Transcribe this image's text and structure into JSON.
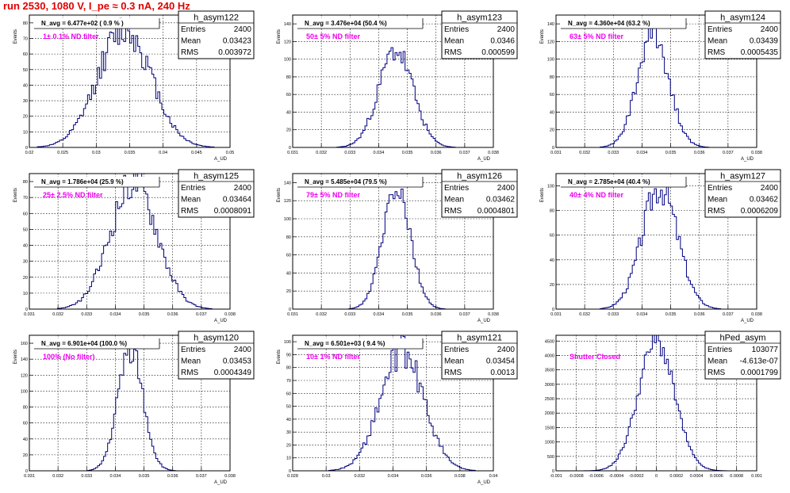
{
  "page_title": "run 2530,  1080 V, I_pe ≈ 0.3 nA, 240 Hz",
  "colors": {
    "title": "#e00000",
    "histogram": "#000080",
    "annotation": "#ee00ee"
  },
  "chart_data": [
    {
      "type": "histogram",
      "title": "h_asym122",
      "ylabel": "Events",
      "xlabel": "A_UD",
      "navg_label": "N_avg = 6.477e+02 ( 0.9 % )",
      "filter_label": "1± 0.1% ND filter",
      "stats": {
        "entries": "2400",
        "mean": "0.03423",
        "rms": "0.003972"
      },
      "x_ticks": [
        "0.02",
        "0.025",
        "0.03",
        "0.035",
        "0.04",
        "0.045",
        "0.05"
      ],
      "xlim": [
        0.02,
        0.05
      ],
      "y_ticks": [
        "0",
        "10",
        "20",
        "30",
        "40",
        "50",
        "60",
        "70",
        "80"
      ],
      "ylim": [
        0,
        85
      ],
      "gen": {
        "mean": 0.03423,
        "sigma": 0.003972,
        "peak": 76,
        "seed": 12
      }
    },
    {
      "type": "histogram",
      "title": "h_asym123",
      "ylabel": "Events",
      "xlabel": "A_UD",
      "navg_label": "N_avg = 3.476e+04 (50.4 %)",
      "filter_label": "50± 5% ND filter",
      "stats": {
        "entries": "2400",
        "mean": "0.0346",
        "rms": "0.000599"
      },
      "x_ticks": [
        "0.031",
        "0.032",
        "0.033",
        "0.034",
        "0.035",
        "0.036",
        "0.037",
        "0.038"
      ],
      "xlim": [
        0.031,
        0.038
      ],
      "y_ticks": [
        "0",
        "20",
        "40",
        "60",
        "80",
        "100",
        "120",
        "140"
      ],
      "ylim": [
        0,
        150
      ],
      "gen": {
        "mean": 0.0346,
        "sigma": 0.000599,
        "peak": 110,
        "seed": 23
      }
    },
    {
      "type": "histogram",
      "title": "h_asym124",
      "ylabel": "Events",
      "xlabel": "A_UD",
      "navg_label": "N_avg = 4.360e+04 (63.2 %)",
      "filter_label": "63± 5% ND filter",
      "stats": {
        "entries": "2400",
        "mean": "0.03439",
        "rms": "0.0005435"
      },
      "x_ticks": [
        "0.031",
        "0.032",
        "0.033",
        "0.034",
        "0.035",
        "0.036",
        "0.037",
        "0.038"
      ],
      "xlim": [
        0.031,
        0.038
      ],
      "y_ticks": [
        "0",
        "20",
        "40",
        "60",
        "80",
        "100",
        "120",
        "140"
      ],
      "ylim": [
        0,
        150
      ],
      "gen": {
        "mean": 0.03439,
        "sigma": 0.0005435,
        "peak": 130,
        "seed": 34
      }
    },
    {
      "type": "histogram",
      "title": "h_asym125",
      "ylabel": "Events",
      "xlabel": "A_UD",
      "navg_label": "N_avg = 1.786e+04 (25.9 %)",
      "filter_label": "25± 2.5% ND filter",
      "stats": {
        "entries": "2400",
        "mean": "0.03464",
        "rms": "0.0008091"
      },
      "x_ticks": [
        "0.031",
        "0.032",
        "0.033",
        "0.034",
        "0.035",
        "0.036",
        "0.037",
        "0.038"
      ],
      "xlim": [
        0.031,
        0.038
      ],
      "y_ticks": [
        "0",
        "10",
        "20",
        "30",
        "40",
        "50",
        "60",
        "70",
        "80"
      ],
      "ylim": [
        0,
        85
      ],
      "gen": {
        "mean": 0.03464,
        "sigma": 0.0008091,
        "peak": 80,
        "seed": 45
      }
    },
    {
      "type": "histogram",
      "title": "h_asym126",
      "ylabel": "Events",
      "xlabel": "A_UD",
      "navg_label": "N_avg = 5.485e+04 (79.5 %)",
      "filter_label": "79± 5% ND filter",
      "stats": {
        "entries": "2400",
        "mean": "0.03462",
        "rms": "0.0004801"
      },
      "x_ticks": [
        "0.031",
        "0.032",
        "0.033",
        "0.034",
        "0.035",
        "0.036",
        "0.037",
        "0.038"
      ],
      "xlim": [
        0.031,
        0.038
      ],
      "y_ticks": [
        "0",
        "20",
        "40",
        "60",
        "80",
        "100",
        "120",
        "140"
      ],
      "ylim": [
        0,
        150
      ],
      "gen": {
        "mean": 0.03462,
        "sigma": 0.0004801,
        "peak": 140,
        "seed": 56
      }
    },
    {
      "type": "histogram",
      "title": "h_asym127",
      "ylabel": "Events",
      "xlabel": "A_UD",
      "navg_label": "N_avg = 2.785e+04 (40.4 %)",
      "filter_label": "40± 4% ND filter",
      "stats": {
        "entries": "2400",
        "mean": "0.03462",
        "rms": "0.0006209"
      },
      "x_ticks": [
        "0.031",
        "0.032",
        "0.033",
        "0.034",
        "0.035",
        "0.036",
        "0.037",
        "0.038"
      ],
      "xlim": [
        0.031,
        0.038
      ],
      "y_ticks": [
        "0",
        "20",
        "40",
        "60",
        "80",
        "100"
      ],
      "ylim": [
        0,
        110
      ],
      "gen": {
        "mean": 0.03462,
        "sigma": 0.0006209,
        "peak": 100,
        "seed": 67
      }
    },
    {
      "type": "histogram",
      "title": "h_asym120",
      "ylabel": "Events",
      "xlabel": "A_UD",
      "navg_label": "N_avg = 6.901e+04 (100.0 %)",
      "filter_label": "100% (No filter)",
      "stats": {
        "entries": "2400",
        "mean": "0.03453",
        "rms": "0.0004349"
      },
      "x_ticks": [
        "0.031",
        "0.032",
        "0.033",
        "0.034",
        "0.035",
        "0.036",
        "0.037",
        "0.038"
      ],
      "xlim": [
        0.031,
        0.038
      ],
      "y_ticks": [
        "0",
        "20",
        "40",
        "60",
        "80",
        "100",
        "120",
        "140",
        "160"
      ],
      "ylim": [
        0,
        170
      ],
      "gen": {
        "mean": 0.03453,
        "sigma": 0.0004349,
        "peak": 155,
        "seed": 78
      }
    },
    {
      "type": "histogram",
      "title": "h_asym121",
      "ylabel": "Events",
      "xlabel": "A_UD",
      "navg_label": "N_avg = 6.501e+03 ( 9.4 %)",
      "filter_label": "10± 1% ND filter",
      "stats": {
        "entries": "2400",
        "mean": "0.03454",
        "rms": "0.0013"
      },
      "x_ticks": [
        "0.028",
        "0.03",
        "0.032",
        "0.034",
        "0.036",
        "0.038",
        "0.04"
      ],
      "xlim": [
        0.028,
        0.04
      ],
      "y_ticks": [
        "0",
        "10",
        "20",
        "30",
        "40",
        "50",
        "60",
        "70",
        "80",
        "90",
        "100"
      ],
      "ylim": [
        0,
        105
      ],
      "gen": {
        "mean": 0.03454,
        "sigma": 0.0013,
        "peak": 92,
        "seed": 89
      }
    },
    {
      "type": "histogram",
      "title": "hPed_asym",
      "ylabel": "",
      "xlabel": "",
      "navg_label": "",
      "filter_label": "Shutter Closed",
      "stats": {
        "entries": "103077",
        "mean": "-4.613e-07",
        "rms": "0.0001799"
      },
      "x_ticks": [
        "-0.001",
        "-0.0008",
        "-0.0006",
        "-0.0004",
        "-0.0002",
        "0",
        "0.0002",
        "0.0004",
        "0.0006",
        "0.0008",
        "0.001"
      ],
      "xlim": [
        -0.001,
        0.001
      ],
      "y_ticks": [
        "0",
        "500",
        "1000",
        "1500",
        "2000",
        "2500",
        "3000",
        "3500",
        "4000",
        "4500"
      ],
      "ylim": [
        0,
        4700
      ],
      "gen": {
        "mean": 0.0,
        "sigma": 0.0001799,
        "peak": 4500,
        "seed": 91
      }
    }
  ]
}
